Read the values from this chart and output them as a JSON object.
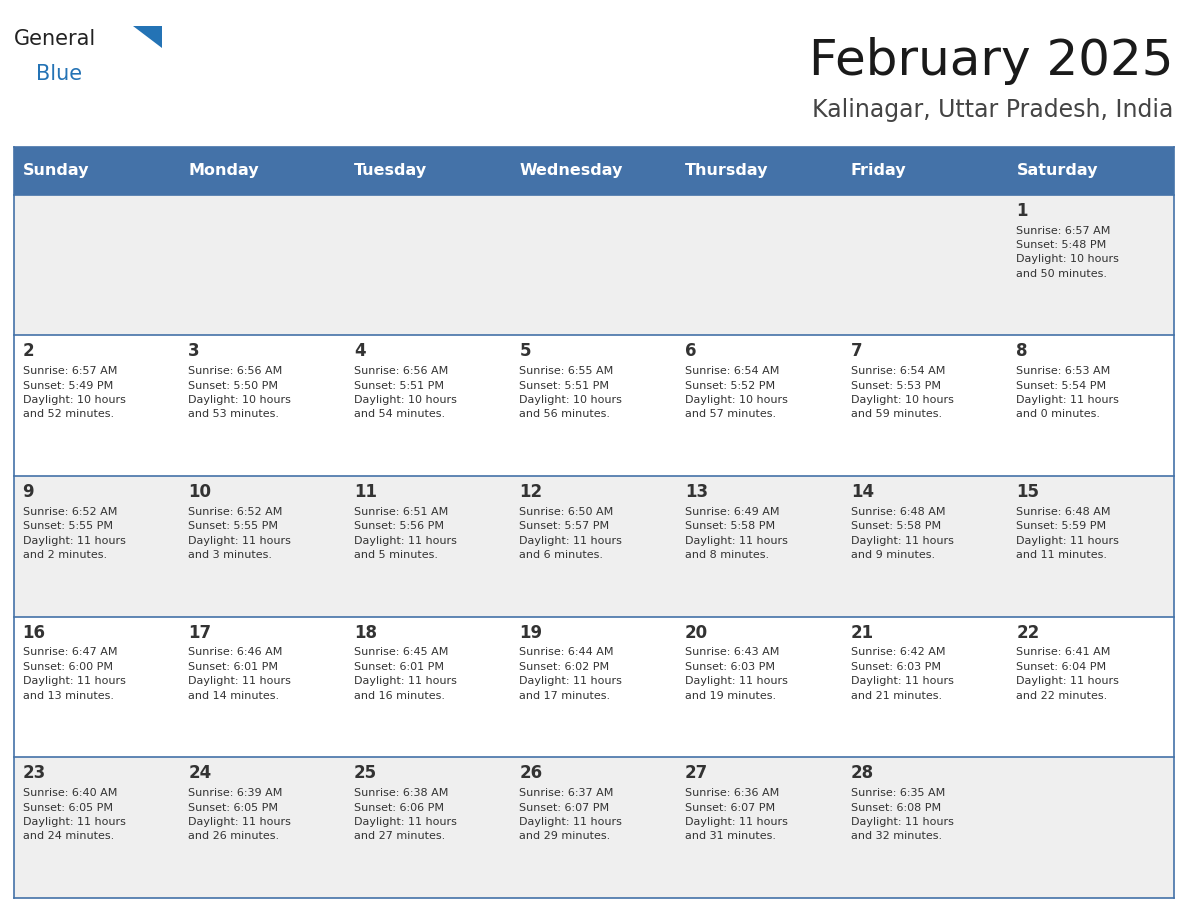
{
  "title": "February 2025",
  "subtitle": "Kalinagar, Uttar Pradesh, India",
  "header_bg_color": "#4472a8",
  "header_text_color": "#ffffff",
  "row_bg_odd": "#efefef",
  "row_bg_even": "#ffffff",
  "border_color": "#4472a8",
  "text_color": "#333333",
  "days_of_week": [
    "Sunday",
    "Monday",
    "Tuesday",
    "Wednesday",
    "Thursday",
    "Friday",
    "Saturday"
  ],
  "calendar_data": [
    [
      {
        "day": "",
        "info": ""
      },
      {
        "day": "",
        "info": ""
      },
      {
        "day": "",
        "info": ""
      },
      {
        "day": "",
        "info": ""
      },
      {
        "day": "",
        "info": ""
      },
      {
        "day": "",
        "info": ""
      },
      {
        "day": "1",
        "info": "Sunrise: 6:57 AM\nSunset: 5:48 PM\nDaylight: 10 hours\nand 50 minutes."
      }
    ],
    [
      {
        "day": "2",
        "info": "Sunrise: 6:57 AM\nSunset: 5:49 PM\nDaylight: 10 hours\nand 52 minutes."
      },
      {
        "day": "3",
        "info": "Sunrise: 6:56 AM\nSunset: 5:50 PM\nDaylight: 10 hours\nand 53 minutes."
      },
      {
        "day": "4",
        "info": "Sunrise: 6:56 AM\nSunset: 5:51 PM\nDaylight: 10 hours\nand 54 minutes."
      },
      {
        "day": "5",
        "info": "Sunrise: 6:55 AM\nSunset: 5:51 PM\nDaylight: 10 hours\nand 56 minutes."
      },
      {
        "day": "6",
        "info": "Sunrise: 6:54 AM\nSunset: 5:52 PM\nDaylight: 10 hours\nand 57 minutes."
      },
      {
        "day": "7",
        "info": "Sunrise: 6:54 AM\nSunset: 5:53 PM\nDaylight: 10 hours\nand 59 minutes."
      },
      {
        "day": "8",
        "info": "Sunrise: 6:53 AM\nSunset: 5:54 PM\nDaylight: 11 hours\nand 0 minutes."
      }
    ],
    [
      {
        "day": "9",
        "info": "Sunrise: 6:52 AM\nSunset: 5:55 PM\nDaylight: 11 hours\nand 2 minutes."
      },
      {
        "day": "10",
        "info": "Sunrise: 6:52 AM\nSunset: 5:55 PM\nDaylight: 11 hours\nand 3 minutes."
      },
      {
        "day": "11",
        "info": "Sunrise: 6:51 AM\nSunset: 5:56 PM\nDaylight: 11 hours\nand 5 minutes."
      },
      {
        "day": "12",
        "info": "Sunrise: 6:50 AM\nSunset: 5:57 PM\nDaylight: 11 hours\nand 6 minutes."
      },
      {
        "day": "13",
        "info": "Sunrise: 6:49 AM\nSunset: 5:58 PM\nDaylight: 11 hours\nand 8 minutes."
      },
      {
        "day": "14",
        "info": "Sunrise: 6:48 AM\nSunset: 5:58 PM\nDaylight: 11 hours\nand 9 minutes."
      },
      {
        "day": "15",
        "info": "Sunrise: 6:48 AM\nSunset: 5:59 PM\nDaylight: 11 hours\nand 11 minutes."
      }
    ],
    [
      {
        "day": "16",
        "info": "Sunrise: 6:47 AM\nSunset: 6:00 PM\nDaylight: 11 hours\nand 13 minutes."
      },
      {
        "day": "17",
        "info": "Sunrise: 6:46 AM\nSunset: 6:01 PM\nDaylight: 11 hours\nand 14 minutes."
      },
      {
        "day": "18",
        "info": "Sunrise: 6:45 AM\nSunset: 6:01 PM\nDaylight: 11 hours\nand 16 minutes."
      },
      {
        "day": "19",
        "info": "Sunrise: 6:44 AM\nSunset: 6:02 PM\nDaylight: 11 hours\nand 17 minutes."
      },
      {
        "day": "20",
        "info": "Sunrise: 6:43 AM\nSunset: 6:03 PM\nDaylight: 11 hours\nand 19 minutes."
      },
      {
        "day": "21",
        "info": "Sunrise: 6:42 AM\nSunset: 6:03 PM\nDaylight: 11 hours\nand 21 minutes."
      },
      {
        "day": "22",
        "info": "Sunrise: 6:41 AM\nSunset: 6:04 PM\nDaylight: 11 hours\nand 22 minutes."
      }
    ],
    [
      {
        "day": "23",
        "info": "Sunrise: 6:40 AM\nSunset: 6:05 PM\nDaylight: 11 hours\nand 24 minutes."
      },
      {
        "day": "24",
        "info": "Sunrise: 6:39 AM\nSunset: 6:05 PM\nDaylight: 11 hours\nand 26 minutes."
      },
      {
        "day": "25",
        "info": "Sunrise: 6:38 AM\nSunset: 6:06 PM\nDaylight: 11 hours\nand 27 minutes."
      },
      {
        "day": "26",
        "info": "Sunrise: 6:37 AM\nSunset: 6:07 PM\nDaylight: 11 hours\nand 29 minutes."
      },
      {
        "day": "27",
        "info": "Sunrise: 6:36 AM\nSunset: 6:07 PM\nDaylight: 11 hours\nand 31 minutes."
      },
      {
        "day": "28",
        "info": "Sunrise: 6:35 AM\nSunset: 6:08 PM\nDaylight: 11 hours\nand 32 minutes."
      },
      {
        "day": "",
        "info": ""
      }
    ]
  ],
  "logo_general_color": "#222222",
  "logo_blue_color": "#2473b5",
  "logo_triangle_color": "#2473b5"
}
